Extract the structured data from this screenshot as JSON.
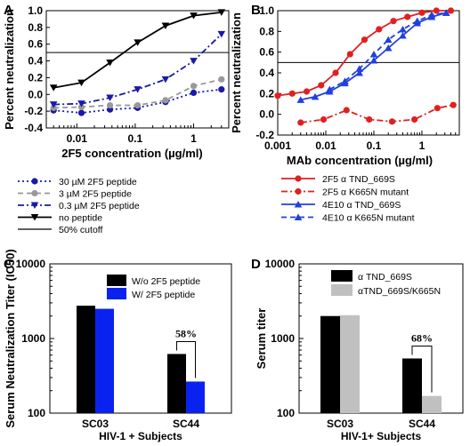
{
  "chart_data": [
    {
      "panel": "A",
      "type": "line",
      "xlabel": "2F5 concentration (µg/ml)",
      "ylabel": "Percent neutralization",
      "xscale": "log",
      "xlim": [
        0.003,
        4
      ],
      "ylim": [
        -0.4,
        1.0
      ],
      "xticks": [
        "0.01",
        "0.1",
        "1"
      ],
      "yticks": [
        "-0.4",
        "-0.2",
        "0.0",
        "0.2",
        "0.4",
        "0.6",
        "0.8",
        "1.0"
      ],
      "reference_line": {
        "y": 0.5,
        "label": "50% cutoff"
      },
      "legend_position": "below",
      "series": [
        {
          "name": "30 µM 2F5 peptide",
          "color": "#1a1aa8",
          "dash": "dot",
          "marker": "circle",
          "x": [
            0.004,
            0.012,
            0.037,
            0.11,
            0.33,
            1.0,
            3.0
          ],
          "y": [
            -0.19,
            -0.22,
            -0.18,
            -0.16,
            -0.09,
            0.02,
            0.06
          ]
        },
        {
          "name": "3 µM 2F5 peptide",
          "color": "#999999",
          "dash": "dash",
          "marker": "circle",
          "x": [
            0.004,
            0.012,
            0.037,
            0.11,
            0.33,
            1.0,
            3.0
          ],
          "y": [
            -0.16,
            -0.15,
            -0.13,
            -0.13,
            -0.07,
            0.1,
            0.18
          ]
        },
        {
          "name": "0.3 µM 2F5 peptide",
          "color": "#1a1aa8",
          "dash": "dashdot",
          "marker": "triangle-down",
          "x": [
            0.004,
            0.012,
            0.037,
            0.11,
            0.33,
            1.0,
            3.0
          ],
          "y": [
            -0.12,
            -0.11,
            -0.04,
            0.06,
            0.18,
            0.4,
            0.72
          ]
        },
        {
          "name": "no peptide",
          "color": "#000000",
          "dash": "solid",
          "marker": "triangle-down",
          "x": [
            0.004,
            0.012,
            0.037,
            0.11,
            0.33,
            1.0,
            3.0
          ],
          "y": [
            0.08,
            0.14,
            0.38,
            0.62,
            0.82,
            0.94,
            0.98
          ]
        },
        {
          "name": "50% cutoff",
          "color": "#000000",
          "dash": "solid",
          "marker": "none",
          "x": [],
          "y": []
        }
      ]
    },
    {
      "panel": "B",
      "type": "line",
      "xlabel": "MAb concentration (µg/ml)",
      "ylabel": "Percent neutralization",
      "xscale": "log",
      "xlim": [
        0.001,
        6
      ],
      "ylim": [
        -0.2,
        1.0
      ],
      "xticks": [
        "0.001",
        "0.01",
        "0.1",
        "1"
      ],
      "yticks": [
        "-0.2",
        "0.0",
        "0.2",
        "0.4",
        "0.6",
        "0.8",
        "1.0"
      ],
      "reference_line": {
        "y": 0.5
      },
      "legend_position": "below",
      "series": [
        {
          "name": "2F5 α TND_669S",
          "color": "#e02020",
          "dash": "solid",
          "marker": "circle",
          "x": [
            0.001,
            0.002,
            0.004,
            0.008,
            0.016,
            0.032,
            0.064,
            0.128,
            0.256,
            0.5,
            1.0,
            2.0,
            4.0
          ],
          "y": [
            0.18,
            0.2,
            0.22,
            0.28,
            0.4,
            0.58,
            0.72,
            0.82,
            0.9,
            0.94,
            0.98,
            1.0,
            1.0
          ]
        },
        {
          "name": "2F5 α K665N mutant",
          "color": "#e02020",
          "dash": "dashdot",
          "marker": "circle",
          "x": [
            0.003,
            0.009,
            0.027,
            0.08,
            0.24,
            0.7,
            2.1,
            4.5
          ],
          "y": [
            -0.08,
            -0.05,
            0.04,
            -0.05,
            -0.07,
            -0.05,
            0.06,
            0.09
          ]
        },
        {
          "name": "4E10 α TND_669S",
          "color": "#2040e0",
          "dash": "solid",
          "marker": "triangle-up",
          "x": [
            0.003,
            0.006,
            0.012,
            0.025,
            0.05,
            0.1,
            0.2,
            0.4,
            0.8,
            1.6,
            3.2
          ],
          "y": [
            0.14,
            0.17,
            0.22,
            0.3,
            0.4,
            0.52,
            0.64,
            0.76,
            0.88,
            0.94,
            0.98
          ]
        },
        {
          "name": "4E10 α K665N mutant",
          "color": "#2040e0",
          "dash": "dash",
          "marker": "triangle-up",
          "x": [
            0.012,
            0.025,
            0.05,
            0.1,
            0.2,
            0.4,
            0.8,
            1.6,
            3.2
          ],
          "y": [
            0.24,
            0.32,
            0.44,
            0.58,
            0.72,
            0.82,
            0.9,
            0.96,
            0.98
          ]
        }
      ]
    },
    {
      "panel": "C",
      "type": "bar",
      "xlabel": "HIV-1 + Subjects",
      "ylabel": "Serum Neutralization Titer (IC50)",
      "yscale": "log",
      "ylim": [
        100,
        10000
      ],
      "yticks": [
        "100",
        "1000",
        "10000"
      ],
      "categories": [
        "SC03",
        "SC44"
      ],
      "series": [
        {
          "name": "W/o 2F5 peptide",
          "color": "#000000",
          "values": [
            2750,
            620
          ]
        },
        {
          "name": "W/ 2F5 peptide",
          "color": "#0a22f0",
          "values": [
            2500,
            265
          ]
        }
      ],
      "annotation": {
        "category": "SC44",
        "text": "58%"
      },
      "legend_position": "top-right"
    },
    {
      "panel": "D",
      "type": "bar",
      "xlabel": "HIV-1+ Subjects",
      "ylabel": "Serum titer",
      "yscale": "log",
      "ylim": [
        100,
        10000
      ],
      "yticks": [
        "100",
        "1000",
        "10000"
      ],
      "categories": [
        "SC03",
        "SC44"
      ],
      "series": [
        {
          "name": "α TND_669S",
          "color": "#000000",
          "values": [
            2000,
            540
          ]
        },
        {
          "name": "αTND_669S/K665N",
          "color": "#c0c0c0",
          "values": [
            2050,
            170
          ]
        }
      ],
      "annotation": {
        "category": "SC44",
        "text": "68%"
      },
      "legend_position": "top"
    }
  ]
}
